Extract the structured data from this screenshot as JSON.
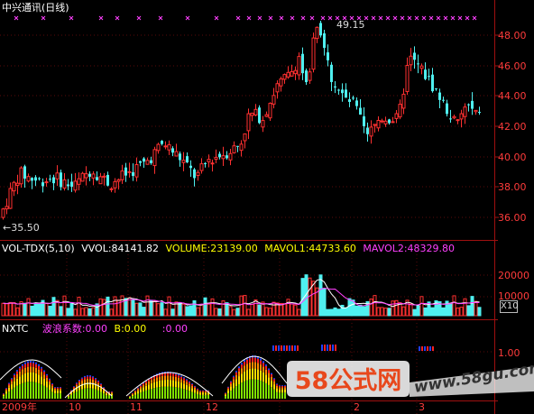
{
  "header": {
    "title": "中兴通讯(日线)"
  },
  "price_axis": {
    "ticks": [
      "48.00",
      "46.00",
      "44.00",
      "42.00",
      "40.00",
      "38.00",
      "36.00"
    ]
  },
  "annotations": {
    "high_label": "49.15",
    "low_label": "←35.50"
  },
  "volume_panel": {
    "indicator": "VOL-TDX(5,10)",
    "vvol": "VVOL:84141.82",
    "volume": "VOLUME:23139.00",
    "mavol1": "MAVOL1:44733.60",
    "mavol2": "MAVOL2:48329.80",
    "ticks": [
      "20000",
      "10000"
    ],
    "unit_button": "X10"
  },
  "nxtc_panel": {
    "indicator": "NXTC",
    "wave_label": "波浪系数:0.00",
    "b_label": "B:0.00",
    "extra_label": ":0.00",
    "tick": "1.00"
  },
  "time_axis": {
    "labels": [
      "2009年",
      "10",
      "11",
      "12",
      "2",
      "3"
    ]
  },
  "watermark": {
    "logo_text": "58公式网",
    "url": "www.58gu.com"
  },
  "colors": {
    "up": "#ff3030",
    "down": "#4ff0f0",
    "grid": "#a01010",
    "volume_label": "#ffff00",
    "mavol2_label": "#ff40ff",
    "wave_label": "#ff40ff"
  }
}
